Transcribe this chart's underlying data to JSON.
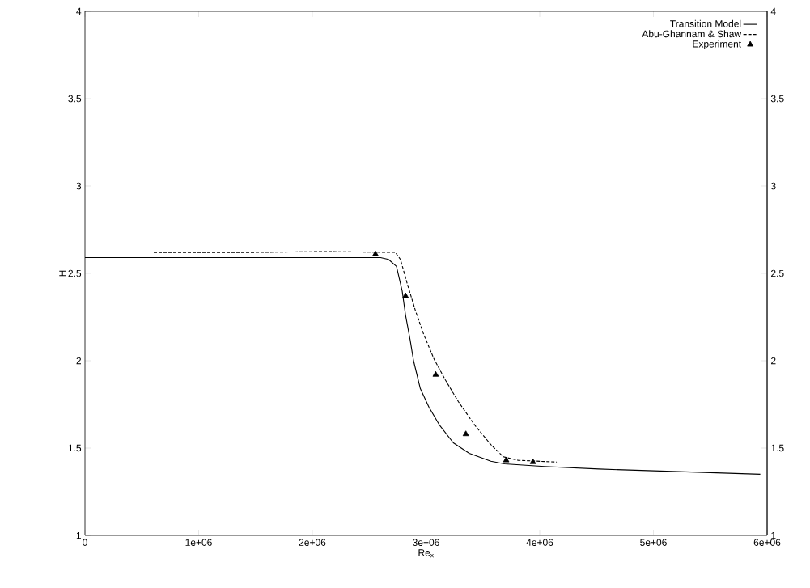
{
  "chart_data": {
    "type": "line",
    "xlabel": "Re$_{x}$",
    "ylabel": "H",
    "xlim": [
      0,
      6000000
    ],
    "ylim": [
      1,
      4
    ],
    "y2lim": [
      1,
      4
    ],
    "xticks": [
      0,
      {
        "value": 1000000,
        "label": "1e+06"
      },
      {
        "value": 2000000,
        "label": "2e+06"
      },
      {
        "value": 3000000,
        "label": "3e+06"
      },
      {
        "value": 4000000,
        "label": "4e+06"
      },
      {
        "value": 5000000,
        "label": "5e+06"
      },
      {
        "value": 6000000,
        "label": "6e+06"
      }
    ],
    "yticks": [
      1,
      1.5,
      2,
      2.5,
      3,
      3.5,
      4
    ],
    "y2ticks": [
      1,
      1.5,
      2,
      2.5,
      3,
      3.5,
      4
    ],
    "legend": "top right",
    "grid": false,
    "series": [
      {
        "name": "Transition Model",
        "type": "line",
        "color": "#000000",
        "line_style": "solid",
        "x": [
          0,
          1000000,
          2000000,
          2600000,
          2670000,
          2740000,
          2790000,
          2820000,
          2860000,
          2890000,
          2950000,
          3025000,
          3120000,
          3240000,
          3380000,
          3570000,
          3690000,
          4040000,
          4520000,
          5940000
        ],
        "values": [
          2.59,
          2.59,
          2.59,
          2.59,
          2.58,
          2.54,
          2.4,
          2.26,
          2.12,
          2.0,
          1.84,
          1.735,
          1.63,
          1.53,
          1.47,
          1.425,
          1.41,
          1.395,
          1.38,
          1.35
        ]
      },
      {
        "name": "Abu-Ghannam & Shaw",
        "type": "line",
        "color": "#000000",
        "line_style": "dashed",
        "x": [
          605000,
          1500000,
          2100000,
          2730000,
          2775000,
          2835000,
          2905000,
          2980000,
          3070000,
          3170000,
          3285000,
          3430000,
          3570000,
          3680000,
          3810000,
          4150000
        ],
        "values": [
          2.62,
          2.62,
          2.625,
          2.62,
          2.58,
          2.44,
          2.29,
          2.15,
          2.01,
          1.89,
          1.765,
          1.63,
          1.52,
          1.45,
          1.43,
          1.42
        ]
      },
      {
        "name": "Experiment",
        "type": "scatter",
        "color": "#000000",
        "marker": "triangle",
        "x": [
          2555000,
          2820000,
          3085000,
          3350000,
          3705000,
          3940000
        ],
        "values": [
          2.61,
          2.37,
          1.92,
          1.58,
          1.43,
          1.42
        ]
      }
    ]
  }
}
